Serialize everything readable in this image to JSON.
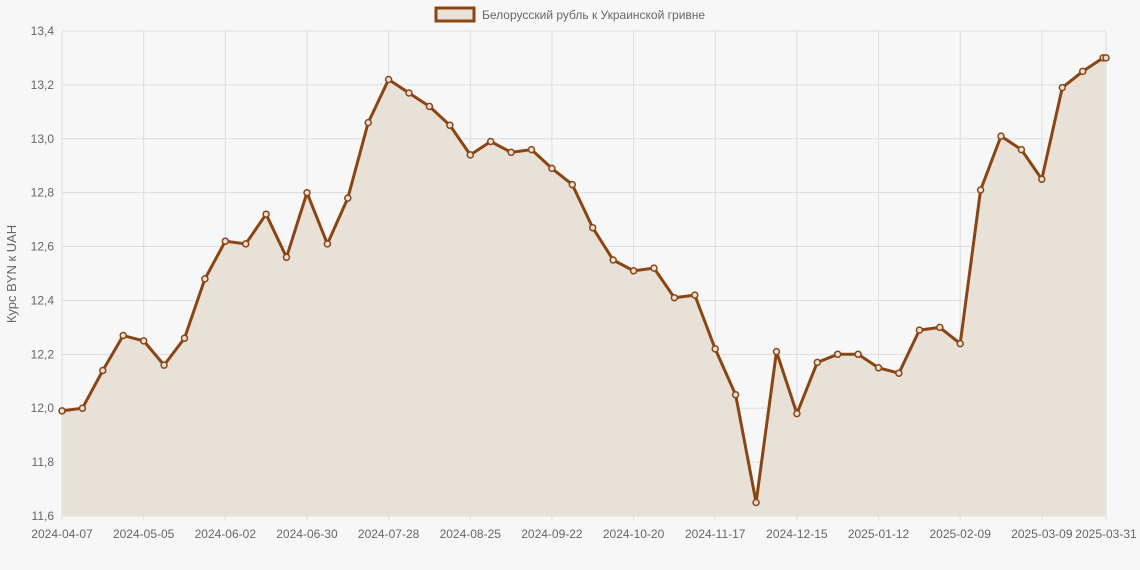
{
  "chart_data": {
    "type": "area",
    "series": [
      {
        "name": "Белорусский рубль к Украинской гривне",
        "values": [
          11.99,
          12.0,
          12.14,
          12.27,
          12.25,
          12.16,
          12.26,
          12.48,
          12.62,
          12.61,
          12.72,
          12.56,
          12.8,
          12.61,
          12.78,
          13.06,
          13.22,
          13.17,
          13.12,
          13.05,
          12.94,
          12.99,
          12.95,
          12.96,
          12.89,
          12.83,
          12.67,
          12.55,
          12.51,
          12.52,
          12.41,
          12.42,
          12.22,
          12.05,
          11.65,
          12.21,
          11.98,
          12.17,
          12.2,
          12.2,
          12.15,
          12.13,
          12.29,
          12.3,
          12.24,
          12.81,
          13.01,
          12.96,
          12.85,
          13.19,
          13.25,
          13.3,
          13.3
        ]
      }
    ],
    "x": [
      "2024-04-07",
      "2024-04-14",
      "2024-04-21",
      "2024-04-28",
      "2024-05-05",
      "2024-05-12",
      "2024-05-19",
      "2024-05-26",
      "2024-06-02",
      "2024-06-09",
      "2024-06-16",
      "2024-06-23",
      "2024-06-30",
      "2024-07-07",
      "2024-07-14",
      "2024-07-21",
      "2024-07-28",
      "2024-08-04",
      "2024-08-11",
      "2024-08-18",
      "2024-08-25",
      "2024-09-01",
      "2024-09-08",
      "2024-09-15",
      "2024-09-22",
      "2024-09-29",
      "2024-10-06",
      "2024-10-13",
      "2024-10-20",
      "2024-10-27",
      "2024-11-03",
      "2024-11-10",
      "2024-11-17",
      "2024-11-24",
      "2024-12-01",
      "2024-12-08",
      "2024-12-15",
      "2024-12-22",
      "2024-12-29",
      "2025-01-05",
      "2025-01-12",
      "2025-01-19",
      "2025-01-26",
      "2025-02-02",
      "2025-02-09",
      "2025-02-16",
      "2025-02-23",
      "2025-03-02",
      "2025-03-09",
      "2025-03-16",
      "2025-03-23",
      "2025-03-30",
      "2025-03-31"
    ],
    "xtick_labels": [
      "2024-04-07",
      "2024-05-05",
      "2024-06-02",
      "2024-06-30",
      "2024-07-28",
      "2024-08-25",
      "2024-09-22",
      "2024-10-20",
      "2024-11-17",
      "2024-12-15",
      "2025-01-12",
      "2025-02-09",
      "2025-03-09",
      "2025-03-31"
    ],
    "ytick_labels": [
      "11,6",
      "11,8",
      "12,0",
      "12,2",
      "12,4",
      "12,6",
      "12,8",
      "13,0",
      "13,2",
      "13,4"
    ],
    "ylim": [
      11.6,
      13.4
    ],
    "yticks": [
      11.6,
      11.8,
      12.0,
      12.2,
      12.4,
      12.6,
      12.8,
      13.0,
      13.2,
      13.4
    ],
    "ylabel": "Курс BYN к UAH",
    "xlabel": "",
    "title": "",
    "grid": true,
    "legend_position": "top-center",
    "colors": {
      "line": "#8b4513",
      "fill": "#e8e1d8",
      "grid": "#dddddd",
      "text": "#666666"
    }
  }
}
